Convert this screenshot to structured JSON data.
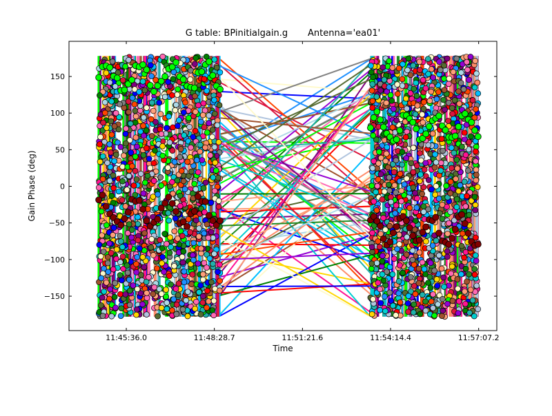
{
  "chart_data": {
    "type": "scatter",
    "title": "G table: BPinitialgain.g       Antenna='ea01'",
    "xlabel": "Time",
    "ylabel": "Gain Phase (deg)",
    "x_tick_labels": [
      "11:45:36.0",
      "11:48:28.7",
      "11:51:21.6",
      "11:54:14.4",
      "11:57:07.2"
    ],
    "x_tick_seconds": [
      42336.0,
      42508.7,
      42681.6,
      42854.4,
      43027.2
    ],
    "xlim_seconds": [
      42223.6,
      43062.8
    ],
    "y_ticks": [
      -150,
      -100,
      -50,
      0,
      50,
      100,
      150
    ],
    "y_tick_labels": [
      "−150",
      "−100",
      "−50",
      "0",
      "50",
      "100",
      "150"
    ],
    "ylim": [
      -197,
      198
    ],
    "grid": false,
    "legend": "none",
    "scans": [
      {
        "start": "11:44:42",
        "end": "11:48:40"
      },
      {
        "start": "11:53:35",
        "end": "11:57:06"
      }
    ],
    "series_colors": [
      "#ff8c69",
      "#1e90ff",
      "#00ff00",
      "#800080",
      "#008000",
      "#ff1493",
      "#ffd700",
      "#00ced1",
      "#ff0000",
      "#0000ff",
      "#a0522d",
      "#808080",
      "#add8e6",
      "#fffacd",
      "#ffa07a",
      "#20b2aa",
      "#9400d3",
      "#556b2f",
      "#dc143c",
      "#00bfff",
      "#ff69b4",
      "#b0c4de",
      "#228b22",
      "#ff4500"
    ],
    "highlight_series": [
      {
        "color": "#00ff00",
        "phase_start_deg": 150,
        "phase_end_deg": 80
      },
      {
        "color": "#800000",
        "phase_start_deg": -35,
        "phase_end_deg": -60
      }
    ]
  }
}
